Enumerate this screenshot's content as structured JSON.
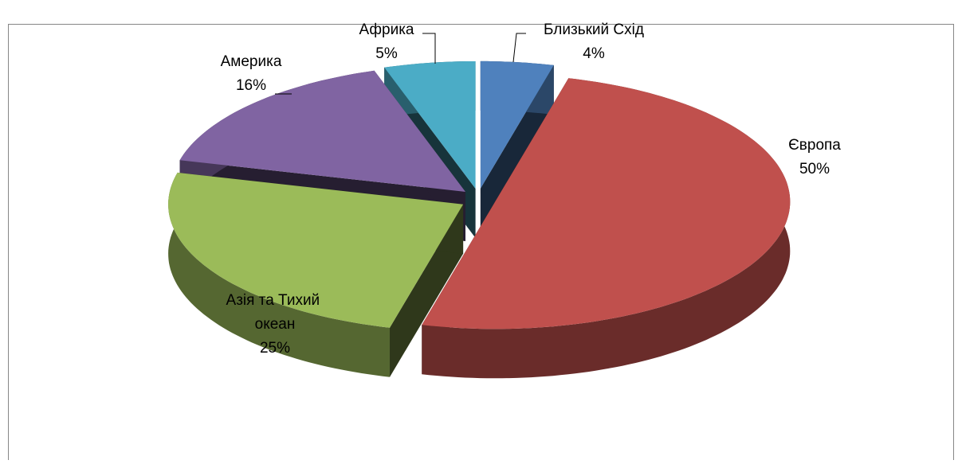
{
  "chart_data": {
    "type": "pie",
    "categories": [
      "Близький Схід",
      "Європа",
      "Азія та Тихий океан",
      "Америка",
      "Африка"
    ],
    "values": [
      4,
      50,
      25,
      16,
      5
    ],
    "value_labels": [
      "4%",
      "50%",
      "25%",
      "16%",
      "5%"
    ],
    "colors": [
      "#4f81bd",
      "#c0504d",
      "#9bbb59",
      "#8064a2",
      "#4bacc6"
    ]
  }
}
